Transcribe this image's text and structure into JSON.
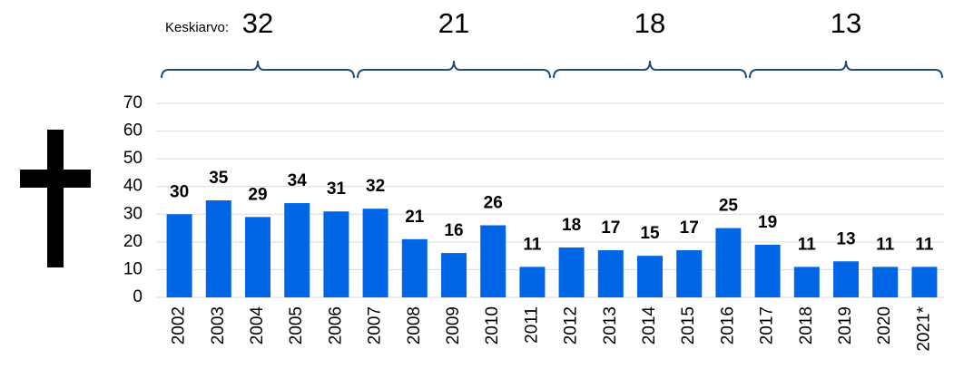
{
  "chart_data": {
    "type": "bar",
    "categories": [
      "2002",
      "2003",
      "2004",
      "2005",
      "2006",
      "2007",
      "2008",
      "2009",
      "2010",
      "2011",
      "2012",
      "2013",
      "2014",
      "2015",
      "2016",
      "2017",
      "2018",
      "2019",
      "2020",
      "2021*"
    ],
    "values": [
      30,
      35,
      29,
      34,
      31,
      32,
      21,
      16,
      26,
      11,
      18,
      17,
      15,
      17,
      25,
      19,
      11,
      13,
      11,
      11
    ],
    "color": "#0066e6",
    "ylim": [
      0,
      70
    ],
    "yticks": [
      0,
      10,
      20,
      30,
      40,
      50,
      60,
      70
    ],
    "grid": true,
    "average_label": "Keskiarvo:",
    "group_averages": [
      32,
      21,
      18,
      13
    ]
  }
}
